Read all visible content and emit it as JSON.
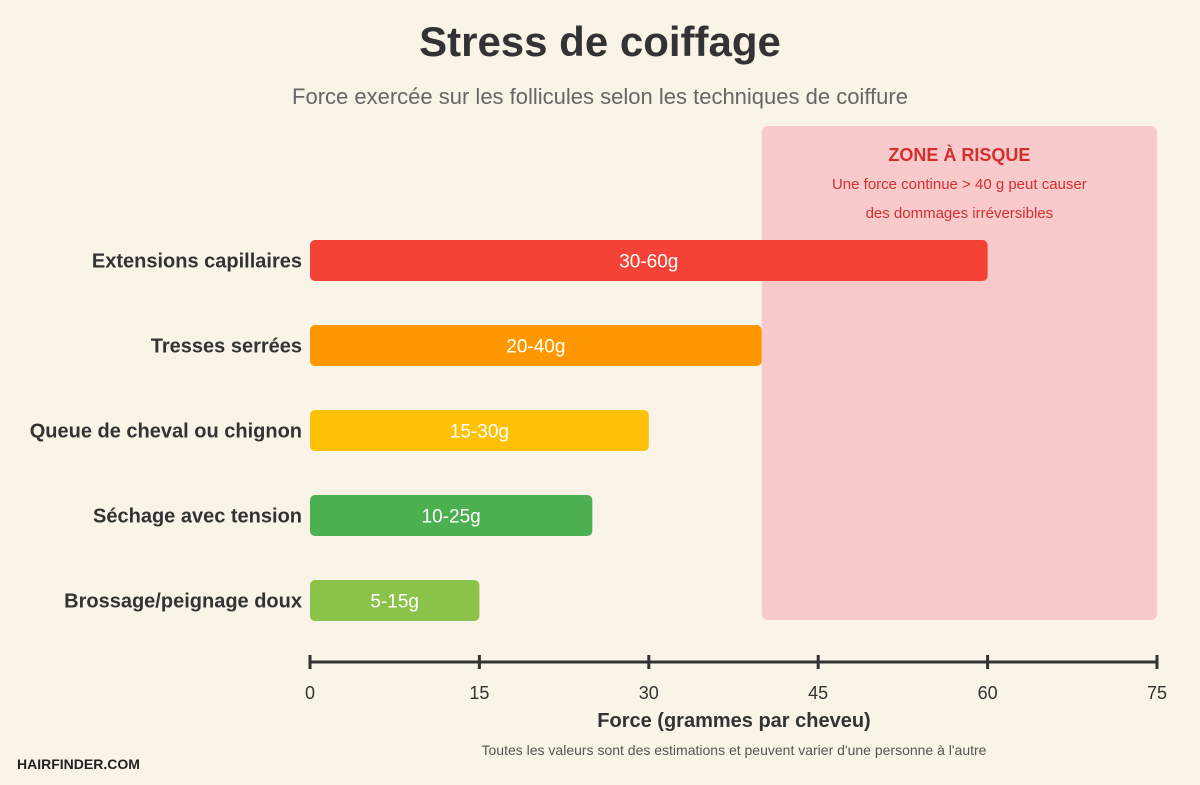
{
  "chart_data": {
    "type": "bar",
    "orientation": "horizontal",
    "title": "Stress de coiffage",
    "subtitle": "Force exercée sur les follicules selon les techniques de coiffure",
    "xlabel": "Force (grammes par cheveu)",
    "xlim": [
      0,
      75
    ],
    "xticks": [
      0,
      15,
      30,
      45,
      60,
      75
    ],
    "categories": [
      "Extensions capillaires",
      "Tresses serrées",
      "Queue de cheval ou chignon",
      "Séchage avec tension",
      "Brossage/peignage doux"
    ],
    "series": [
      {
        "ranges": [
          [
            30,
            60
          ],
          [
            20,
            40
          ],
          [
            15,
            30
          ],
          [
            10,
            25
          ],
          [
            5,
            15
          ]
        ],
        "labels": [
          "30-60g",
          "20-40g",
          "15-30g",
          "10-25g",
          "5-15g"
        ],
        "colors": [
          "#f44336",
          "#ff9800",
          "#ffc107",
          "#4caf50",
          "#8bc34a"
        ]
      }
    ],
    "risk_zone": {
      "from": 40,
      "to": 75,
      "title": "ZONE À RISQUE",
      "lines": [
        "Une force continue > 40 g peut causer",
        "des dommages irréversibles"
      ],
      "color": "#f8cacb"
    },
    "grid": false,
    "legend": "none"
  },
  "footnote": "Toutes les valeurs sont des estimations et peuvent varier d'une personne à l'autre",
  "brand": "HAIRFINDER.COM"
}
